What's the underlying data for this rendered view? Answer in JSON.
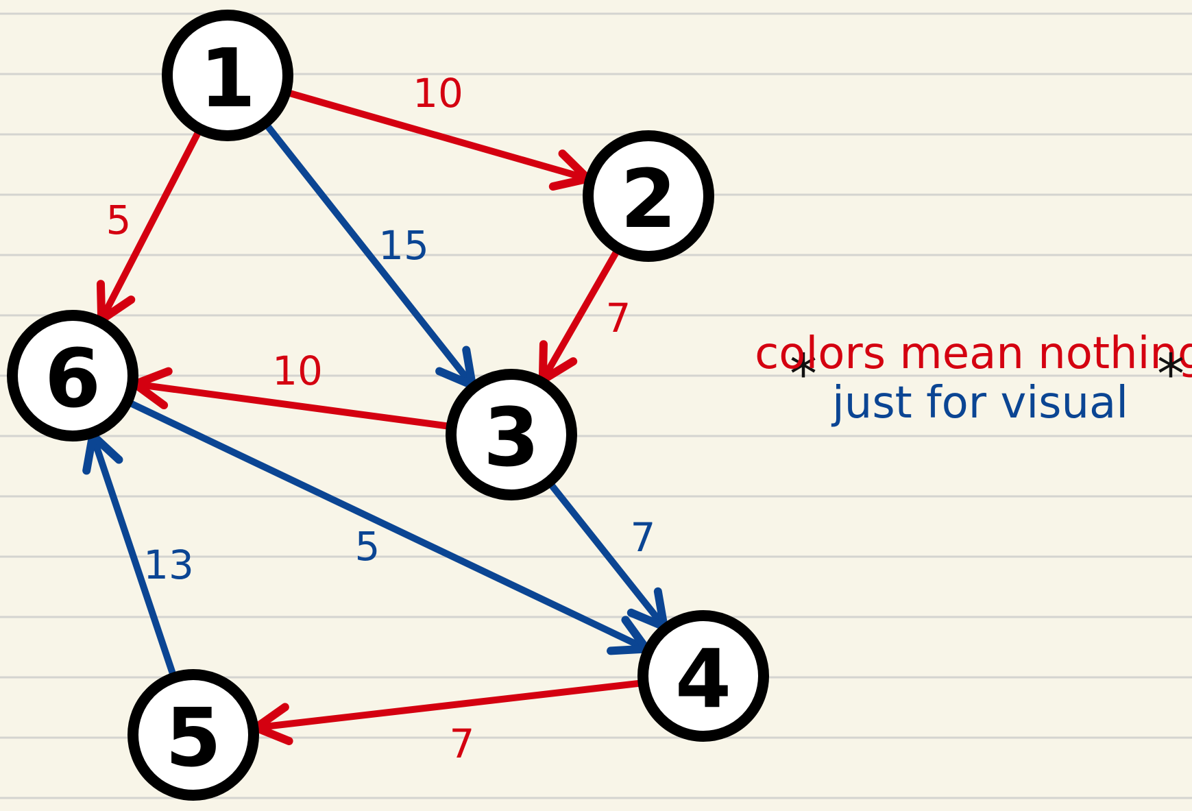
{
  "colors": {
    "red": "#d40010",
    "blue": "#0b4593",
    "black": "#000000",
    "paper": "#f8f5e8",
    "rule": "#d4d4d0"
  },
  "nodes": [
    {
      "id": "n1",
      "label": "1"
    },
    {
      "id": "n2",
      "label": "2"
    },
    {
      "id": "n3",
      "label": "3"
    },
    {
      "id": "n4",
      "label": "4"
    },
    {
      "id": "n5",
      "label": "5"
    },
    {
      "id": "n6",
      "label": "6"
    }
  ],
  "edges": [
    {
      "from": "1",
      "to": "2",
      "weight": "10",
      "color": "red"
    },
    {
      "from": "1",
      "to": "6",
      "weight": "5",
      "color": "red"
    },
    {
      "from": "1",
      "to": "3",
      "weight": "15",
      "color": "blue"
    },
    {
      "from": "2",
      "to": "3",
      "weight": "7",
      "color": "red"
    },
    {
      "from": "3",
      "to": "6",
      "weight": "10",
      "color": "red"
    },
    {
      "from": "3",
      "to": "4",
      "weight": "7",
      "color": "blue"
    },
    {
      "from": "6",
      "to": "4",
      "weight": "5",
      "color": "blue"
    },
    {
      "from": "5",
      "to": "6",
      "weight": "13",
      "color": "blue"
    },
    {
      "from": "4",
      "to": "5",
      "weight": "7",
      "color": "red"
    }
  ],
  "note": {
    "line1": "colors mean nothing,",
    "line2": "just for visual",
    "asterisk": "*"
  }
}
